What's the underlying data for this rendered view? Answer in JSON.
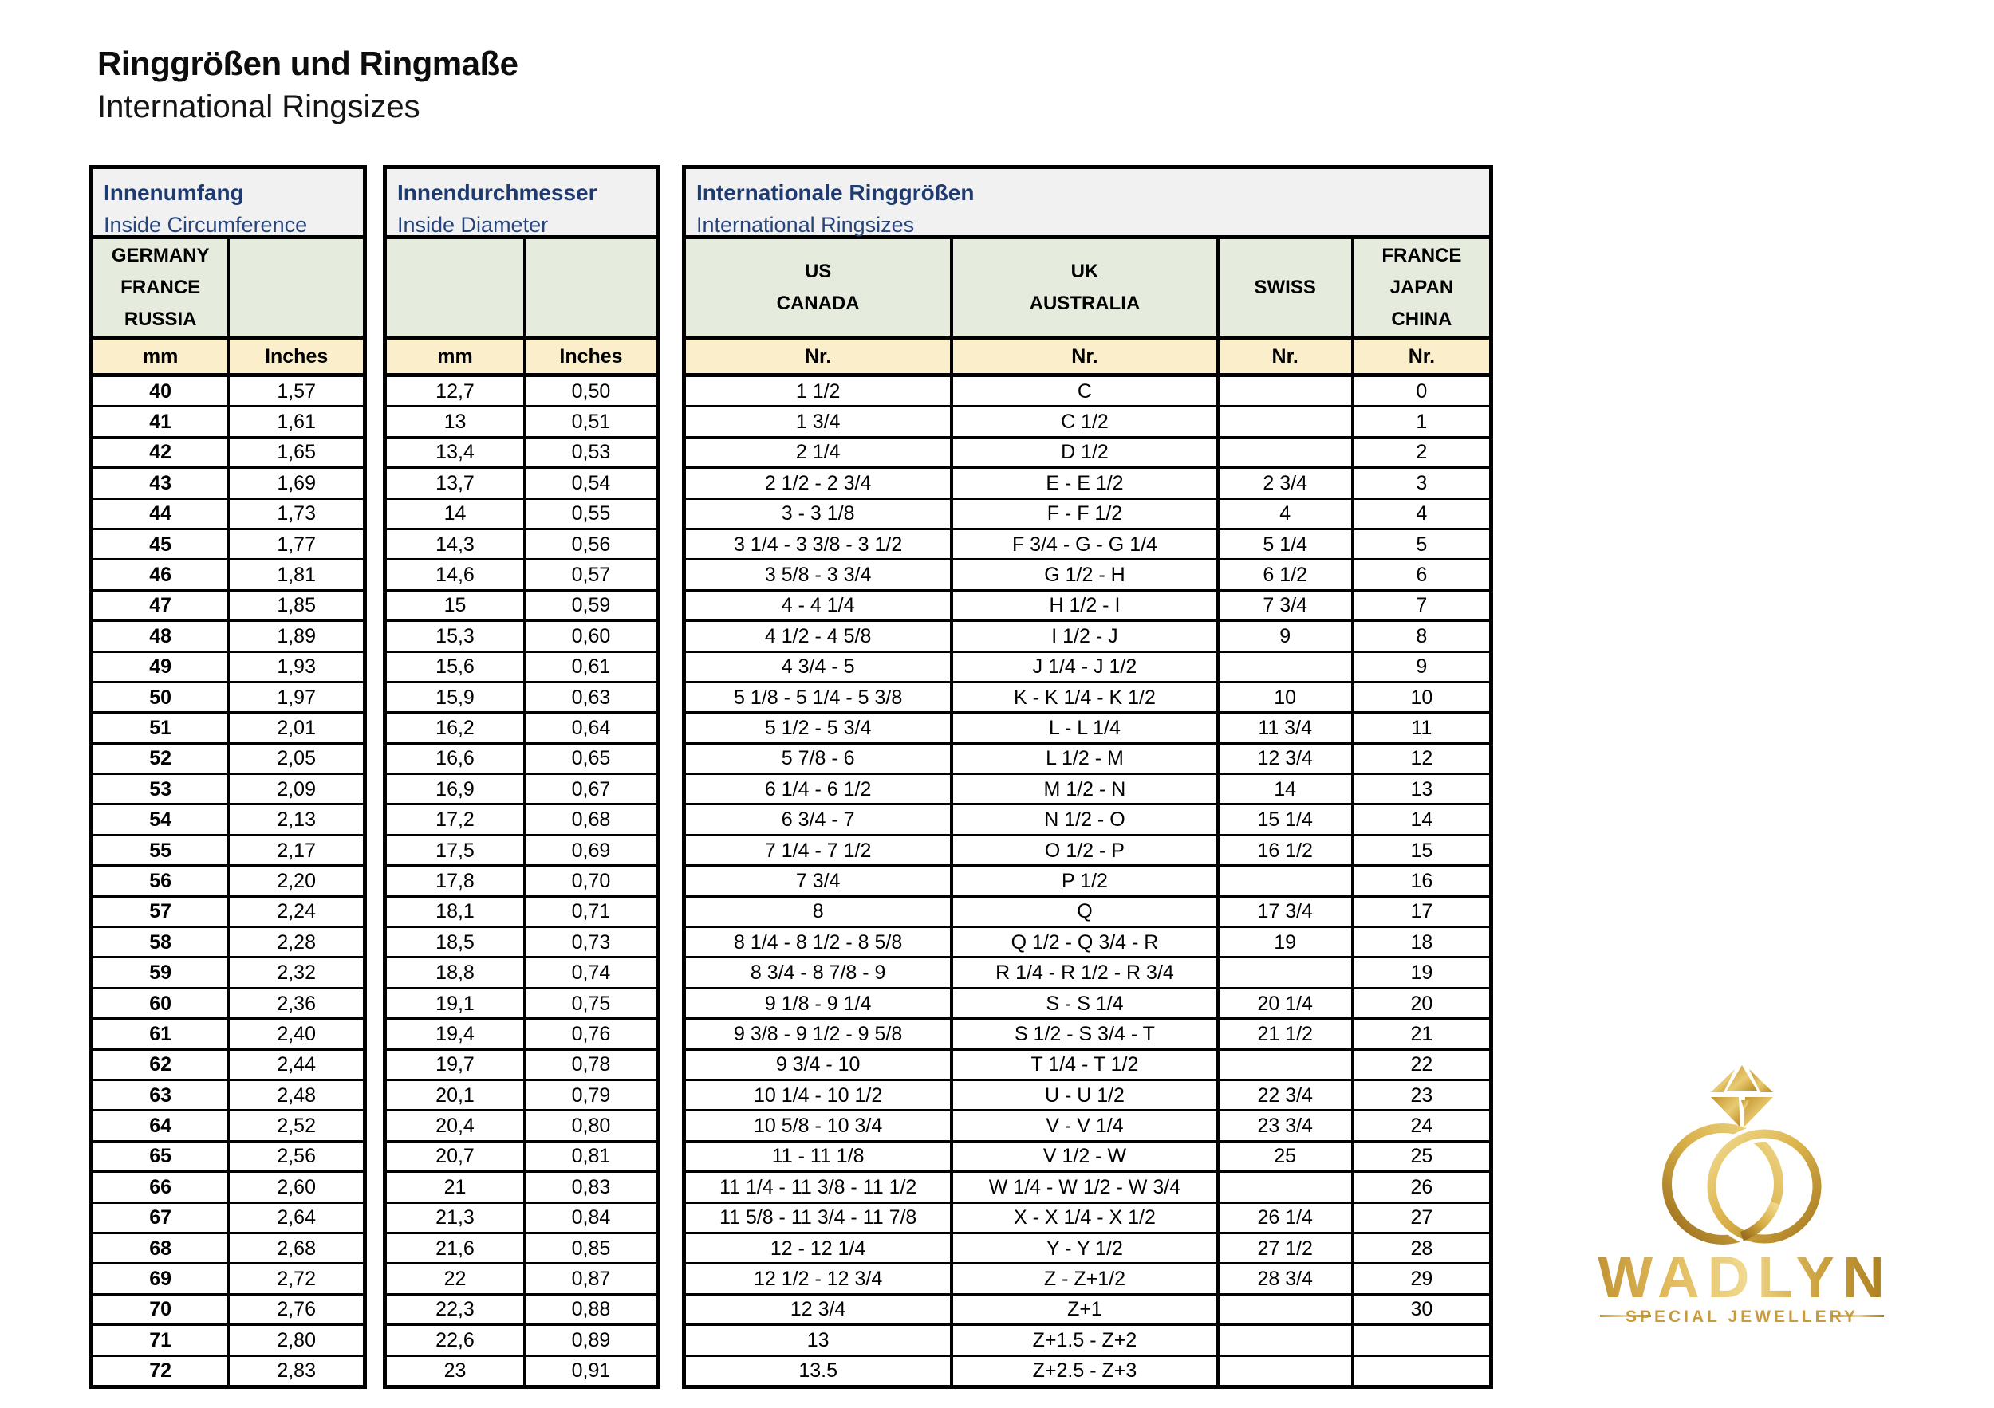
{
  "page": {
    "title": "Ringgrößen und Ringmaße",
    "subtitle": "International Ringsizes"
  },
  "colors": {
    "header_text_navy": "#1f3a6e",
    "title_block_bg": "#f1f1f2",
    "country_row_bg": "#e6ecdd",
    "units_row_bg": "#faeecb",
    "border_black": "#000000",
    "logo_gold_dark": "#a2761a",
    "logo_gold_light": "#f0d98c"
  },
  "tables": {
    "circumference": {
      "title_de": "Innenumfang",
      "title_en": "Inside Circumference",
      "country_headers": [
        [
          "GERMANY",
          "FRANCE",
          "RUSSIA"
        ],
        []
      ],
      "units": [
        "mm",
        "Inches"
      ],
      "rows": [
        [
          "40",
          "1,57"
        ],
        [
          "41",
          "1,61"
        ],
        [
          "42",
          "1,65"
        ],
        [
          "43",
          "1,69"
        ],
        [
          "44",
          "1,73"
        ],
        [
          "45",
          "1,77"
        ],
        [
          "46",
          "1,81"
        ],
        [
          "47",
          "1,85"
        ],
        [
          "48",
          "1,89"
        ],
        [
          "49",
          "1,93"
        ],
        [
          "50",
          "1,97"
        ],
        [
          "51",
          "2,01"
        ],
        [
          "52",
          "2,05"
        ],
        [
          "53",
          "2,09"
        ],
        [
          "54",
          "2,13"
        ],
        [
          "55",
          "2,17"
        ],
        [
          "56",
          "2,20"
        ],
        [
          "57",
          "2,24"
        ],
        [
          "58",
          "2,28"
        ],
        [
          "59",
          "2,32"
        ],
        [
          "60",
          "2,36"
        ],
        [
          "61",
          "2,40"
        ],
        [
          "62",
          "2,44"
        ],
        [
          "63",
          "2,48"
        ],
        [
          "64",
          "2,52"
        ],
        [
          "65",
          "2,56"
        ],
        [
          "66",
          "2,60"
        ],
        [
          "67",
          "2,64"
        ],
        [
          "68",
          "2,68"
        ],
        [
          "69",
          "2,72"
        ],
        [
          "70",
          "2,76"
        ],
        [
          "71",
          "2,80"
        ],
        [
          "72",
          "2,83"
        ]
      ]
    },
    "diameter": {
      "title_de": "Innendurchmesser",
      "title_en": "Inside Diameter",
      "country_headers": [
        [],
        []
      ],
      "units": [
        "mm",
        "Inches"
      ],
      "rows": [
        [
          "12,7",
          "0,50"
        ],
        [
          "13",
          "0,51"
        ],
        [
          "13,4",
          "0,53"
        ],
        [
          "13,7",
          "0,54"
        ],
        [
          "14",
          "0,55"
        ],
        [
          "14,3",
          "0,56"
        ],
        [
          "14,6",
          "0,57"
        ],
        [
          "15",
          "0,59"
        ],
        [
          "15,3",
          "0,60"
        ],
        [
          "15,6",
          "0,61"
        ],
        [
          "15,9",
          "0,63"
        ],
        [
          "16,2",
          "0,64"
        ],
        [
          "16,6",
          "0,65"
        ],
        [
          "16,9",
          "0,67"
        ],
        [
          "17,2",
          "0,68"
        ],
        [
          "17,5",
          "0,69"
        ],
        [
          "17,8",
          "0,70"
        ],
        [
          "18,1",
          "0,71"
        ],
        [
          "18,5",
          "0,73"
        ],
        [
          "18,8",
          "0,74"
        ],
        [
          "19,1",
          "0,75"
        ],
        [
          "19,4",
          "0,76"
        ],
        [
          "19,7",
          "0,78"
        ],
        [
          "20,1",
          "0,79"
        ],
        [
          "20,4",
          "0,80"
        ],
        [
          "20,7",
          "0,81"
        ],
        [
          "21",
          "0,83"
        ],
        [
          "21,3",
          "0,84"
        ],
        [
          "21,6",
          "0,85"
        ],
        [
          "22",
          "0,87"
        ],
        [
          "22,3",
          "0,88"
        ],
        [
          "22,6",
          "0,89"
        ],
        [
          "23",
          "0,91"
        ]
      ]
    },
    "international": {
      "title_de": "Internationale Ringgrößen",
      "title_en": "International Ringsizes",
      "country_headers": [
        [
          "US",
          "CANADA"
        ],
        [
          "UK",
          "AUSTRALIA"
        ],
        [
          "SWISS"
        ],
        [
          "FRANCE",
          "JAPAN",
          "CHINA"
        ]
      ],
      "units": [
        "Nr.",
        "Nr.",
        "Nr.",
        "Nr."
      ],
      "rows": [
        [
          "1 1/2",
          "C",
          "",
          "0"
        ],
        [
          "1 3/4",
          "C 1/2",
          "",
          "1"
        ],
        [
          "2 1/4",
          "D 1/2",
          "",
          "2"
        ],
        [
          "2 1/2 - 2 3/4",
          "E - E 1/2",
          "2 3/4",
          "3"
        ],
        [
          "3 - 3 1/8",
          "F - F 1/2",
          "4",
          "4"
        ],
        [
          "3 1/4 - 3 3/8 - 3 1/2",
          "F 3/4 - G - G 1/4",
          "5 1/4",
          "5"
        ],
        [
          "3 5/8 - 3 3/4",
          "G 1/2 - H",
          "6 1/2",
          "6"
        ],
        [
          "4 - 4 1/4",
          "H 1/2 - I",
          "7 3/4",
          "7"
        ],
        [
          "4 1/2 - 4 5/8",
          "I 1/2 - J",
          "9",
          "8"
        ],
        [
          "4 3/4 - 5",
          "J 1/4 - J 1/2",
          "",
          "9"
        ],
        [
          "5 1/8 - 5 1/4 - 5 3/8",
          "K - K 1/4 - K 1/2",
          "10",
          "10"
        ],
        [
          "5 1/2 - 5 3/4",
          "L - L 1/4",
          "11 3/4",
          "11"
        ],
        [
          "5 7/8 - 6",
          "L 1/2 - M",
          "12 3/4",
          "12"
        ],
        [
          "6 1/4 - 6 1/2",
          "M 1/2 - N",
          "14",
          "13"
        ],
        [
          "6 3/4 - 7",
          "N 1/2 - O",
          "15 1/4",
          "14"
        ],
        [
          "7 1/4 - 7 1/2",
          "O 1/2 - P",
          "16 1/2",
          "15"
        ],
        [
          "7 3/4",
          "P 1/2",
          "",
          "16"
        ],
        [
          "8",
          "Q",
          "17 3/4",
          "17"
        ],
        [
          "8 1/4 - 8 1/2 - 8 5/8",
          "Q 1/2 - Q 3/4 - R",
          "19",
          "18"
        ],
        [
          "8 3/4 - 8 7/8 - 9",
          "R 1/4 - R 1/2 - R 3/4",
          "",
          "19"
        ],
        [
          "9 1/8 - 9 1/4",
          "S - S 1/4",
          "20 1/4",
          "20"
        ],
        [
          "9 3/8 - 9 1/2 - 9 5/8",
          "S 1/2 - S 3/4 - T",
          "21 1/2",
          "21"
        ],
        [
          "9 3/4 - 10",
          "T 1/4 - T 1/2",
          "",
          "22"
        ],
        [
          "10 1/4 - 10 1/2",
          "U - U 1/2",
          "22 3/4",
          "23"
        ],
        [
          "10 5/8 - 10 3/4",
          "V - V 1/4",
          "23 3/4",
          "24"
        ],
        [
          "11 - 11 1/8",
          "V 1/2 - W",
          "25",
          "25"
        ],
        [
          "11 1/4 - 11 3/8 - 11 1/2",
          "W 1/4 - W 1/2 - W 3/4",
          "",
          "26"
        ],
        [
          "11 5/8 - 11 3/4 - 11 7/8",
          "X - X 1/4 - X 1/2",
          "26 1/4",
          "27"
        ],
        [
          "12 - 12 1/4",
          "Y - Y 1/2",
          "27 1/2",
          "28"
        ],
        [
          "12 1/2 - 12 3/4",
          "Z - Z+1/2",
          "28 3/4",
          "29"
        ],
        [
          "12 3/4",
          "Z+1",
          "",
          "30"
        ],
        [
          "13",
          "Z+1.5 - Z+2",
          "",
          ""
        ],
        [
          "13.5",
          "Z+2.5 - Z+3",
          "",
          ""
        ]
      ]
    }
  },
  "logo": {
    "brand": "WADLYN",
    "tagline": "SPECIAL JEWELLERY"
  }
}
